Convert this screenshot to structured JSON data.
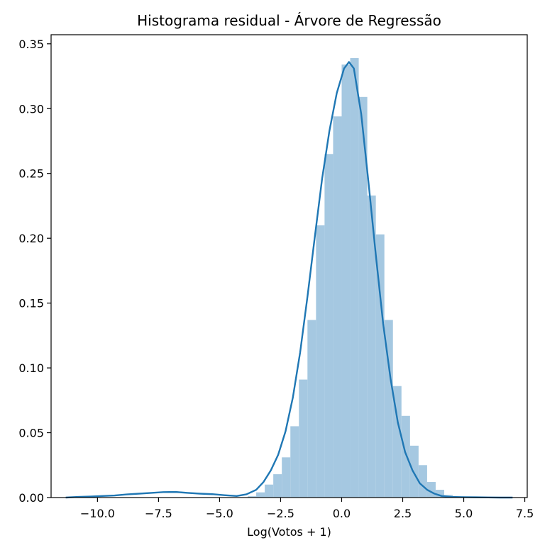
{
  "chart_data": {
    "type": "histogram",
    "title": "Histograma residual - Árvore de Regressão",
    "xlabel": "Log(Votos + 1)",
    "ylabel": "",
    "xlim": [
      -11.9,
      7.6
    ],
    "ylim": [
      0,
      0.357
    ],
    "grid": false,
    "x_ticks": [
      -10.0,
      -7.5,
      -5.0,
      -2.5,
      0.0,
      2.5,
      5.0,
      7.5
    ],
    "x_tick_labels": [
      "−10.0",
      "−7.5",
      "−5.0",
      "−2.5",
      "0.0",
      "2.5",
      "5.0",
      "7.5"
    ],
    "y_ticks": [
      0.0,
      0.05,
      0.1,
      0.15,
      0.2,
      0.25,
      0.3,
      0.35
    ],
    "y_tick_labels": [
      "0.00",
      "0.05",
      "0.10",
      "0.15",
      "0.20",
      "0.25",
      "0.30",
      "0.35"
    ],
    "colors": {
      "bars": "#a5c8e1",
      "kde": "#1f77b4",
      "frame": "#000000"
    },
    "histogram": {
      "bin_width": 0.35,
      "bins": [
        {
          "x0": -3.85,
          "x1": -3.5,
          "value": 0.001
        },
        {
          "x0": -3.5,
          "x1": -3.15,
          "value": 0.004
        },
        {
          "x0": -3.15,
          "x1": -2.8,
          "value": 0.01
        },
        {
          "x0": -2.8,
          "x1": -2.45,
          "value": 0.018
        },
        {
          "x0": -2.45,
          "x1": -2.1,
          "value": 0.031
        },
        {
          "x0": -2.1,
          "x1": -1.75,
          "value": 0.055
        },
        {
          "x0": -1.75,
          "x1": -1.4,
          "value": 0.091
        },
        {
          "x0": -1.4,
          "x1": -1.05,
          "value": 0.137
        },
        {
          "x0": -1.05,
          "x1": -0.7,
          "value": 0.21
        },
        {
          "x0": -0.7,
          "x1": -0.35,
          "value": 0.265
        },
        {
          "x0": -0.35,
          "x1": 0.0,
          "value": 0.294
        },
        {
          "x0": 0.0,
          "x1": 0.35,
          "value": 0.334
        },
        {
          "x0": 0.35,
          "x1": 0.7,
          "value": 0.339
        },
        {
          "x0": 0.7,
          "x1": 1.05,
          "value": 0.309
        },
        {
          "x0": 1.05,
          "x1": 1.4,
          "value": 0.233
        },
        {
          "x0": 1.4,
          "x1": 1.75,
          "value": 0.203
        },
        {
          "x0": 1.75,
          "x1": 2.1,
          "value": 0.137
        },
        {
          "x0": 2.1,
          "x1": 2.45,
          "value": 0.086
        },
        {
          "x0": 2.45,
          "x1": 2.8,
          "value": 0.063
        },
        {
          "x0": 2.8,
          "x1": 3.15,
          "value": 0.04
        },
        {
          "x0": 3.15,
          "x1": 3.5,
          "value": 0.025
        },
        {
          "x0": 3.5,
          "x1": 3.85,
          "value": 0.012
        },
        {
          "x0": 3.85,
          "x1": 4.2,
          "value": 0.006
        },
        {
          "x0": 4.2,
          "x1": 4.55,
          "value": 0.002
        }
      ]
    },
    "kde": {
      "x": [
        -11.3,
        -10.8,
        -10.3,
        -9.8,
        -9.3,
        -8.8,
        -8.3,
        -7.8,
        -7.3,
        -6.8,
        -6.3,
        -5.8,
        -5.3,
        -4.8,
        -4.3,
        -3.9,
        -3.5,
        -3.2,
        -2.9,
        -2.6,
        -2.3,
        -2.0,
        -1.7,
        -1.4,
        -1.1,
        -0.8,
        -0.5,
        -0.2,
        0.1,
        0.3,
        0.5,
        0.8,
        1.1,
        1.4,
        1.7,
        2.0,
        2.3,
        2.6,
        2.9,
        3.2,
        3.5,
        3.8,
        4.1,
        4.5,
        5.0,
        5.5,
        6.0,
        6.5,
        7.0
      ],
      "y": [
        0.0,
        0.0005,
        0.0008,
        0.0012,
        0.0016,
        0.0024,
        0.003,
        0.0036,
        0.0042,
        0.0043,
        0.0036,
        0.003,
        0.0026,
        0.0018,
        0.0012,
        0.0025,
        0.006,
        0.012,
        0.021,
        0.033,
        0.051,
        0.077,
        0.112,
        0.155,
        0.201,
        0.246,
        0.283,
        0.312,
        0.331,
        0.336,
        0.331,
        0.296,
        0.243,
        0.187,
        0.134,
        0.092,
        0.058,
        0.035,
        0.021,
        0.011,
        0.006,
        0.003,
        0.0012,
        0.0005,
        0.0003,
        0.0002,
        0.0001,
        0.0,
        0.0
      ]
    }
  }
}
